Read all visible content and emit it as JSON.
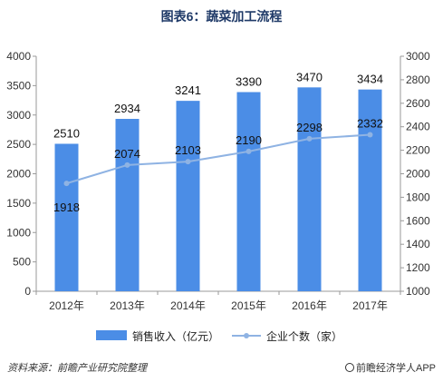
{
  "title": "图表6：蔬菜加工流程",
  "source": "资料来源：前瞻产业研究院整理",
  "brand": "前瞻经济学人APP",
  "colors": {
    "bar": "#4b8de6",
    "line": "#8fb3e3",
    "axis": "#999999",
    "grid": "#e0e0e0"
  },
  "chart_data": {
    "type": "bar",
    "categories": [
      "2012年",
      "2013年",
      "2014年",
      "2015年",
      "2016年",
      "2017年"
    ],
    "series": [
      {
        "name": "销售收入（亿元）",
        "type": "bar",
        "axis": "left",
        "values": [
          2510,
          2934,
          3241,
          3390,
          3470,
          3434
        ]
      },
      {
        "name": "企业个数（家）",
        "type": "line",
        "axis": "right",
        "values": [
          1918,
          2074,
          2103,
          2190,
          2298,
          2332
        ]
      }
    ],
    "ylim_left": [
      0,
      4000
    ],
    "yticks_left": [
      "0",
      "500",
      "1000",
      "1500",
      "2000",
      "2500",
      "3000",
      "3500",
      "4000"
    ],
    "ylim_right": [
      1000,
      3000
    ],
    "yticks_right": [
      "1000",
      "1200",
      "1400",
      "1600",
      "1800",
      "2000",
      "2200",
      "2400",
      "2600",
      "2800",
      "3000"
    ],
    "legend": "bottom",
    "grid": false
  }
}
